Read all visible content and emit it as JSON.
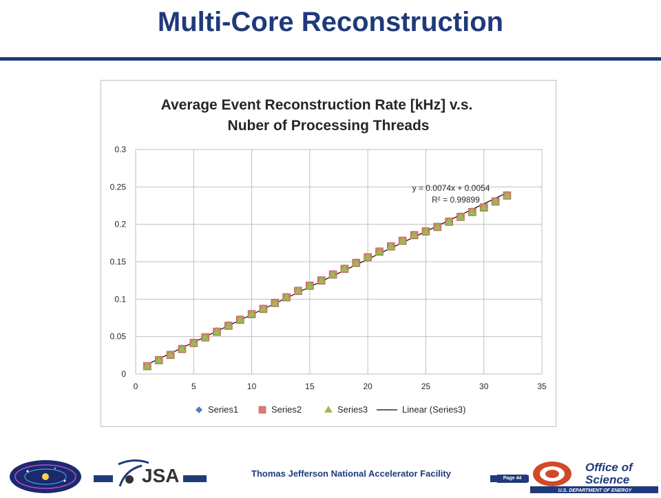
{
  "slide": {
    "title": "Multi-Core Reconstruction",
    "footer": "Thomas Jefferson National Accelerator Facility",
    "page_label": "Page 44"
  },
  "logos": {
    "left_logo_text": "Office of Nuclear Physics",
    "left_logo_subtext": "Exploring Nuclear Matter - Quarks to Stars",
    "center_logo_text": "JSA",
    "right_logo_line1": "Office of",
    "right_logo_line2": "Science",
    "right_logo_line3": "U.S. DEPARTMENT OF ENERGY"
  },
  "colors": {
    "brand_navy": "#1f3a7a",
    "series1": "#4f81bd",
    "series2": "#e07a72",
    "series3": "#9bbb59",
    "trend": "#000000"
  },
  "chart_data": {
    "type": "scatter",
    "title_line1": "Average Event Reconstruction Rate [kHz] v.s.",
    "title_line2": "Nuber of Processing Threads",
    "xlim": [
      0,
      35
    ],
    "ylim": [
      0,
      0.3
    ],
    "x_ticks": [
      0,
      5,
      10,
      15,
      20,
      25,
      30,
      35
    ],
    "y_ticks": [
      0,
      0.05,
      0.1,
      0.15,
      0.2,
      0.25,
      0.3
    ],
    "x_tick_labels": [
      "0",
      "5",
      "10",
      "15",
      "20",
      "25",
      "30",
      "35"
    ],
    "y_tick_labels": [
      "0",
      "0.05",
      "0.1",
      "0.15",
      "0.2",
      "0.25",
      "0.3"
    ],
    "grid": true,
    "legend_position": "bottom",
    "x": [
      1,
      2,
      3,
      4,
      5,
      6,
      7,
      8,
      9,
      10,
      11,
      12,
      13,
      14,
      15,
      16,
      17,
      18,
      19,
      20,
      21,
      22,
      23,
      24,
      25,
      26,
      27,
      28,
      29,
      30,
      31,
      32
    ],
    "series": [
      {
        "name": "Series1",
        "marker": "diamond",
        "values": [
          0.0105,
          0.0185,
          0.0255,
          0.0335,
          0.0415,
          0.049,
          0.0565,
          0.0645,
          0.0725,
          0.08,
          0.087,
          0.095,
          0.1025,
          0.111,
          0.118,
          0.125,
          0.133,
          0.1405,
          0.1485,
          0.156,
          0.1635,
          0.1705,
          0.178,
          0.1855,
          0.1905,
          0.1965,
          0.2035,
          0.21,
          0.2165,
          0.2225,
          0.2305,
          0.2385
        ]
      },
      {
        "name": "Series2",
        "marker": "square",
        "values": [
          0.0105,
          0.0185,
          0.0255,
          0.0335,
          0.0415,
          0.049,
          0.0565,
          0.0645,
          0.0725,
          0.08,
          0.087,
          0.095,
          0.1025,
          0.111,
          0.118,
          0.125,
          0.133,
          0.1405,
          0.1485,
          0.156,
          0.1635,
          0.1705,
          0.178,
          0.1855,
          0.1905,
          0.1965,
          0.2035,
          0.21,
          0.2165,
          0.2225,
          0.2305,
          0.2385
        ]
      },
      {
        "name": "Series3",
        "marker": "triangle",
        "values": [
          0.0105,
          0.0185,
          0.0255,
          0.0335,
          0.0415,
          0.049,
          0.0565,
          0.0645,
          0.0725,
          0.08,
          0.087,
          0.095,
          0.1025,
          0.111,
          0.118,
          0.125,
          0.133,
          0.1405,
          0.1485,
          0.156,
          0.1635,
          0.1705,
          0.178,
          0.1855,
          0.1905,
          0.1965,
          0.2035,
          0.21,
          0.2165,
          0.2225,
          0.2305,
          0.2385
        ]
      }
    ],
    "trendline": {
      "name": "Linear (Series3)",
      "slope": 0.0074,
      "intercept": 0.0054,
      "x_range": [
        1,
        32
      ],
      "equation": "y = 0.0074x + 0.0054",
      "r_squared": "R² = 0.99899"
    }
  }
}
